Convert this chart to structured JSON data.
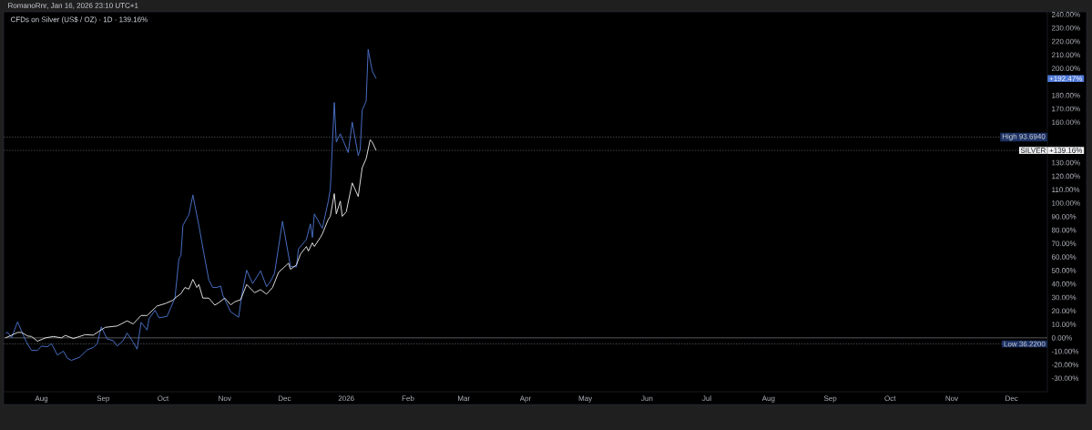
{
  "chart_data": {
    "type": "line",
    "title": "CFDs on Silver (US$ / OZ) · 1D · 139.16%",
    "annotations": [
      "RomanoRnr, Jan 16, 2026 23:10 UTC+1",
      "+192.47%",
      "+139.16%"
    ],
    "xlim": [
      "2025-07-13",
      "2026-12-19"
    ],
    "xticks": [
      {
        "value": "2025-08-01",
        "label": "Aug"
      },
      {
        "value": "2025-09-01",
        "label": "Sep"
      },
      {
        "value": "2025-10-01",
        "label": "Oct"
      },
      {
        "value": "2025-11-01",
        "label": "Nov"
      },
      {
        "value": "2025-12-01",
        "label": "Dec"
      },
      {
        "value": "2026-01-01",
        "label": "2026"
      },
      {
        "value": "2026-02-01",
        "label": "Feb"
      },
      {
        "value": "2026-03-01",
        "label": "Mar"
      },
      {
        "value": "2026-04-01",
        "label": "Apr"
      },
      {
        "value": "2026-05-01",
        "label": "May"
      },
      {
        "value": "2026-06-01",
        "label": "Jun"
      },
      {
        "value": "2026-07-01",
        "label": "Jul"
      },
      {
        "value": "2026-08-01",
        "label": "Aug"
      },
      {
        "value": "2026-09-01",
        "label": "Sep"
      },
      {
        "value": "2026-10-01",
        "label": "Oct"
      },
      {
        "value": "2026-11-01",
        "label": "Nov"
      },
      {
        "value": "2026-12-01",
        "label": "Dec"
      }
    ],
    "ylim": [
      -40,
      242
    ],
    "yticks": [
      {
        "value": -30,
        "label": "-30.00%"
      },
      {
        "value": -20,
        "label": "-20.00%"
      },
      {
        "value": -10,
        "label": "-10.00%"
      },
      {
        "value": 0,
        "label": "0.00%"
      },
      {
        "value": 10,
        "label": "10.00%"
      },
      {
        "value": 20,
        "label": "20.00%"
      },
      {
        "value": 30,
        "label": "30.00%"
      },
      {
        "value": 40,
        "label": "40.00%"
      },
      {
        "value": 50,
        "label": "50.00%"
      },
      {
        "value": 60,
        "label": "60.00%"
      },
      {
        "value": 70,
        "label": "70.00%"
      },
      {
        "value": 80,
        "label": "80.00%"
      },
      {
        "value": 90,
        "label": "90.00%"
      },
      {
        "value": 100,
        "label": "100.00%"
      },
      {
        "value": 110,
        "label": "110.00%"
      },
      {
        "value": 120,
        "label": "120.00%"
      },
      {
        "value": 130,
        "label": "130.00%"
      },
      {
        "value": 160,
        "label": "160.00%"
      },
      {
        "value": 170,
        "label": "170.00%"
      },
      {
        "value": 180,
        "label": "180.00%"
      },
      {
        "value": 200,
        "label": "200.00%"
      },
      {
        "value": 210,
        "label": "210.00%"
      },
      {
        "value": 220,
        "label": "220.00%"
      },
      {
        "value": 230,
        "label": "230.00%"
      },
      {
        "value": 240,
        "label": "240.00%"
      }
    ],
    "ref_lines": [
      {
        "axis": "y",
        "value": 0,
        "color": "#8f9299",
        "line_style": "solid"
      },
      {
        "axis": "y",
        "value": 149,
        "label": "High 93.6940",
        "color": "#6b6e78",
        "line_style": "dashed"
      },
      {
        "axis": "y",
        "value": 139.16,
        "color": "#6b6e78",
        "line_style": "dashed"
      },
      {
        "axis": "y",
        "value": -4.5,
        "label": "Low 36.2200",
        "color": "#6b6e78",
        "line_style": "dashed"
      }
    ],
    "series": [
      {
        "color": "#4f78d6",
        "x": [
          "2025-07-14",
          "2025-07-15",
          "2025-07-17",
          "2025-07-20",
          "2025-07-23",
          "2025-07-25",
          "2025-07-27",
          "2025-07-30",
          "2025-08-01",
          "2025-08-04",
          "2025-08-06",
          "2025-08-09",
          "2025-08-12",
          "2025-08-14",
          "2025-08-16",
          "2025-08-20",
          "2025-08-24",
          "2025-08-27",
          "2025-08-29",
          "2025-08-31",
          "2025-09-03",
          "2025-09-06",
          "2025-09-08",
          "2025-09-11",
          "2025-09-13",
          "2025-09-16",
          "2025-09-18",
          "2025-09-20",
          "2025-09-23",
          "2025-09-24",
          "2025-09-27",
          "2025-09-29",
          "2025-10-03",
          "2025-10-05",
          "2025-10-07",
          "2025-10-09",
          "2025-10-10",
          "2025-10-11",
          "2025-10-14",
          "2025-10-16",
          "2025-10-19",
          "2025-10-22",
          "2025-10-24",
          "2025-10-26",
          "2025-10-28",
          "2025-10-30",
          "2025-10-31",
          "2025-11-04",
          "2025-11-08",
          "2025-11-09",
          "2025-11-10",
          "2025-11-12",
          "2025-11-15",
          "2025-11-19",
          "2025-11-22",
          "2025-11-24",
          "2025-11-26",
          "2025-11-30",
          "2025-12-04",
          "2025-12-07",
          "2025-12-08",
          "2025-12-12",
          "2025-12-14",
          "2025-12-15",
          "2025-12-16",
          "2025-12-20",
          "2025-12-23",
          "2025-12-24",
          "2025-12-26",
          "2025-12-27",
          "2025-12-29",
          "2026-01-02",
          "2026-01-04",
          "2026-01-07",
          "2026-01-08",
          "2026-01-09",
          "2026-01-11",
          "2026-01-12",
          "2026-01-14",
          "2026-01-16"
        ],
        "values": [
          3.6,
          4,
          0.2,
          11.9,
          1.4,
          -4.7,
          -9.3,
          -9.3,
          -6.1,
          -6.6,
          -4.3,
          -12.8,
          -9.9,
          -15.1,
          -16.7,
          -14.5,
          -8.8,
          -7.2,
          -4.3,
          8.1,
          -0.9,
          -2,
          -6.1,
          -2,
          3.6,
          -3.2,
          -8.4,
          11.5,
          5.8,
          14.2,
          20.5,
          14.9,
          15.9,
          22.7,
          29.5,
          58.8,
          61,
          83.5,
          91.4,
          106,
          83.5,
          58.8,
          43,
          37.4,
          37.4,
          38.5,
          31.7,
          19.3,
          15.3,
          26.1,
          35.1,
          50.2,
          40.3,
          49.7,
          38,
          41.9,
          48,
          86.5,
          53,
          52.7,
          66,
          73,
          84.6,
          74.5,
          92,
          81.3,
          101.5,
          110.5,
          174.7,
          145.4,
          151.5,
          137.5,
          160.1,
          135.3,
          139.8,
          169.1,
          175.8,
          214.1,
          198.3,
          192.47
        ]
      },
      {
        "name": "SILVER",
        "color": "#f2f2f2",
        "x": [
          "2025-07-14",
          "2025-07-20",
          "2025-07-22",
          "2025-07-25",
          "2025-07-27",
          "2025-07-30",
          "2025-08-03",
          "2025-08-07",
          "2025-08-11",
          "2025-08-13",
          "2025-08-17",
          "2025-08-23",
          "2025-08-27",
          "2025-08-30",
          "2025-09-02",
          "2025-09-08",
          "2025-09-13",
          "2025-09-16",
          "2025-09-20",
          "2025-09-23",
          "2025-09-28",
          "2025-10-02",
          "2025-10-06",
          "2025-10-07",
          "2025-10-10",
          "2025-10-12",
          "2025-10-14",
          "2025-10-16",
          "2025-10-18",
          "2025-10-19",
          "2025-10-21",
          "2025-10-24",
          "2025-10-27",
          "2025-10-29",
          "2025-11-01",
          "2025-11-04",
          "2025-11-06",
          "2025-11-09",
          "2025-11-12",
          "2025-11-16",
          "2025-11-19",
          "2025-11-22",
          "2025-11-25",
          "2025-11-28",
          "2025-12-03",
          "2025-12-04",
          "2025-12-07",
          "2025-12-09",
          "2025-12-12",
          "2025-12-13",
          "2025-12-15",
          "2025-12-16",
          "2025-12-19",
          "2025-12-20",
          "2025-12-23",
          "2025-12-24",
          "2025-12-26",
          "2025-12-27",
          "2025-12-29",
          "2025-12-30",
          "2026-01-01",
          "2026-01-04",
          "2026-01-07",
          "2026-01-09",
          "2026-01-11",
          "2026-01-13",
          "2026-01-14",
          "2026-01-16"
        ],
        "values": [
          0,
          4,
          4,
          1.4,
          1,
          -2.5,
          0,
          1,
          0,
          1.8,
          -0.5,
          2.4,
          2,
          5,
          7.8,
          8.8,
          12.6,
          10.3,
          16.6,
          16.6,
          23.6,
          25.4,
          27.9,
          29.5,
          32.8,
          37.4,
          36.2,
          43.4,
          37.4,
          39.6,
          29.5,
          29.5,
          24.3,
          26.1,
          29.5,
          24.5,
          26.7,
          28.4,
          39.6,
          33.5,
          35.8,
          32.4,
          37.4,
          48.6,
          55.4,
          50.9,
          54.2,
          62.1,
          67.8,
          64.4,
          70.5,
          67.8,
          74.5,
          77.2,
          88,
          90.2,
          107,
          92,
          101.5,
          90.2,
          93.6,
          115,
          104.9,
          126.3,
          133,
          147,
          145.4,
          139.16
        ]
      }
    ]
  }
}
